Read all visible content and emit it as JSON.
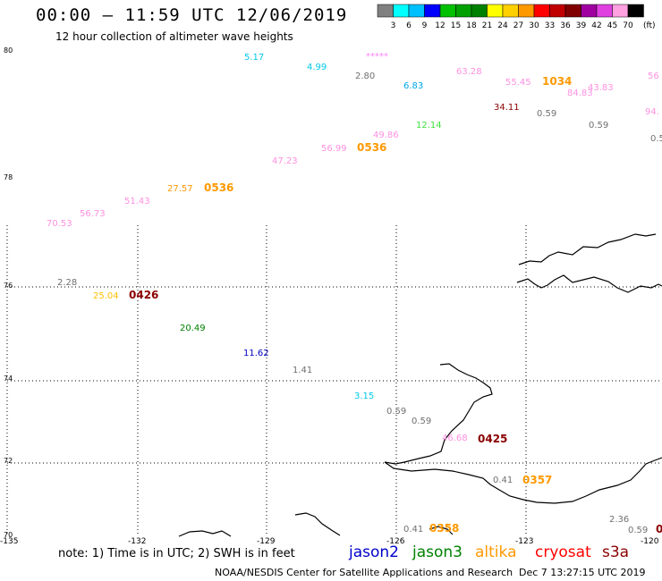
{
  "header": {
    "title": "00:00 – 11:59 UTC 12/06/2019",
    "subtitle": "12 hour collection of altimeter wave heights"
  },
  "legend": {
    "unit": "(ft)",
    "bins": [
      {
        "label": "3",
        "color": "#808080"
      },
      {
        "label": "6",
        "color": "#00ffff"
      },
      {
        "label": "9",
        "color": "#00bfff"
      },
      {
        "label": "12",
        "color": "#0000ff"
      },
      {
        "label": "15",
        "color": "#00c000"
      },
      {
        "label": "18",
        "color": "#00a000"
      },
      {
        "label": "21",
        "color": "#008000"
      },
      {
        "label": "24",
        "color": "#ffff00"
      },
      {
        "label": "27",
        "color": "#ffd000"
      },
      {
        "label": "30",
        "color": "#ff9900"
      },
      {
        "label": "33",
        "color": "#ff0000"
      },
      {
        "label": "36",
        "color": "#c00000"
      },
      {
        "label": "39",
        "color": "#800000"
      },
      {
        "label": "42",
        "color": "#a000a0"
      },
      {
        "label": "45",
        "color": "#e040e0"
      },
      {
        "label": "70",
        "color": "#ffa0e0"
      },
      {
        "label": "",
        "color": "#000000"
      }
    ]
  },
  "axes": {
    "lat_labels": [
      "80",
      "78",
      "76",
      "74",
      "72",
      "70"
    ],
    "lon_labels": [
      "-135",
      "-132",
      "-129",
      "-126",
      "-123",
      "-120"
    ]
  },
  "observations": [
    {
      "text": "5.17",
      "color": "#00c8e8"
    },
    {
      "text": "4.99",
      "color": "#00c8e8"
    },
    {
      "text": "*****",
      "color": "#ff80ff"
    },
    {
      "text": "2.80",
      "color": "#707070"
    },
    {
      "text": "6.83",
      "color": "#00a8e8"
    },
    {
      "text": "63.28",
      "color": "#ff90e0"
    },
    {
      "text": "55.45",
      "color": "#ff90e0"
    },
    {
      "text": "1034",
      "color": "#ff9900"
    },
    {
      "text": "84.83",
      "color": "#ff90e0"
    },
    {
      "text": "43.83",
      "color": "#ff90e0"
    },
    {
      "text": "56",
      "color": "#ff90e0"
    },
    {
      "text": "34.11",
      "color": "#8b0000"
    },
    {
      "text": "0.59",
      "color": "#707070"
    },
    {
      "text": "0.59",
      "color": "#707070"
    },
    {
      "text": "94.",
      "color": "#ff90e0"
    },
    {
      "text": "0.5",
      "color": "#707070"
    },
    {
      "text": "12.14",
      "color": "#40e040"
    },
    {
      "text": "49.86",
      "color": "#ff90e0"
    },
    {
      "text": "56.99",
      "color": "#ff90e0"
    },
    {
      "text": "0536",
      "color": "#ff9900"
    },
    {
      "text": "47.23",
      "color": "#ff90e0"
    },
    {
      "text": "27.57",
      "color": "#ff9900"
    },
    {
      "text": "0536",
      "color": "#ff9900"
    },
    {
      "text": "51.43",
      "color": "#ff90e0"
    },
    {
      "text": "56.73",
      "color": "#ff90e0"
    },
    {
      "text": "70.53",
      "color": "#ff90e0"
    },
    {
      "text": "2.28",
      "color": "#707070"
    },
    {
      "text": "25.04",
      "color": "#ffc000"
    },
    {
      "text": "0426",
      "color": "#8b0000"
    },
    {
      "text": "20.49",
      "color": "#008000"
    },
    {
      "text": "11.62",
      "color": "#0000c0"
    },
    {
      "text": "1.41",
      "color": "#707070"
    },
    {
      "text": "3.15",
      "color": "#00c8e8"
    },
    {
      "text": "0.59",
      "color": "#707070"
    },
    {
      "text": "0.59",
      "color": "#707070"
    },
    {
      "text": "46.68",
      "color": "#ff90e0"
    },
    {
      "text": "0425",
      "color": "#8b0000"
    },
    {
      "text": "0.41",
      "color": "#707070"
    },
    {
      "text": "0357",
      "color": "#ff9900"
    },
    {
      "text": "0.41",
      "color": "#707070"
    },
    {
      "text": "0358",
      "color": "#ff9900"
    },
    {
      "text": "2.36",
      "color": "#707070"
    },
    {
      "text": "0.59",
      "color": "#707070"
    },
    {
      "text": "0",
      "color": "#8b0000"
    }
  ],
  "footer": {
    "note": "note: 1) Time is in UTC; 2) SWH is in feet",
    "satellites": [
      {
        "name": "jason2",
        "color": "#0000cc"
      },
      {
        "name": "jason3",
        "color": "#008000"
      },
      {
        "name": "altika",
        "color": "#ff9900"
      },
      {
        "name": "cryosat",
        "color": "#ff0000"
      },
      {
        "name": "s3a",
        "color": "#8b0000"
      }
    ],
    "credit": "NOAA/NESDIS Center for Satellite Applications and Research",
    "timestamp": "Dec  7 13:27:15 UTC 2019"
  }
}
